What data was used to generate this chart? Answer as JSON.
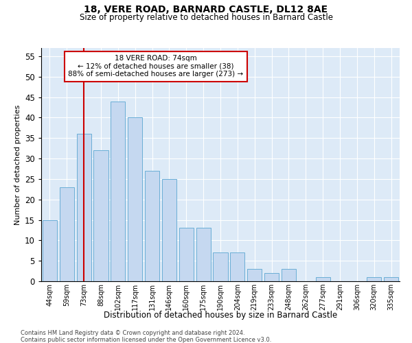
{
  "title1": "18, VERE ROAD, BARNARD CASTLE, DL12 8AE",
  "title2": "Size of property relative to detached houses in Barnard Castle",
  "xlabel": "Distribution of detached houses by size in Barnard Castle",
  "ylabel": "Number of detached properties",
  "footnote1": "Contains HM Land Registry data © Crown copyright and database right 2024.",
  "footnote2": "Contains public sector information licensed under the Open Government Licence v3.0.",
  "annotation_line1": "18 VERE ROAD: 74sqm",
  "annotation_line2": "← 12% of detached houses are smaller (38)",
  "annotation_line3": "88% of semi-detached houses are larger (273) →",
  "bar_labels": [
    "44sqm",
    "59sqm",
    "73sqm",
    "88sqm",
    "102sqm",
    "117sqm",
    "131sqm",
    "146sqm",
    "160sqm",
    "175sqm",
    "190sqm",
    "204sqm",
    "219sqm",
    "233sqm",
    "248sqm",
    "262sqm",
    "277sqm",
    "291sqm",
    "306sqm",
    "320sqm",
    "335sqm"
  ],
  "bar_values": [
    15,
    23,
    36,
    32,
    44,
    40,
    27,
    25,
    13,
    13,
    7,
    7,
    3,
    2,
    3,
    0,
    1,
    0,
    0,
    1,
    1
  ],
  "bar_color": "#c5d8f0",
  "bar_edge_color": "#6aaed6",
  "background_color": "#ddeaf7",
  "vline_color": "#cc0000",
  "annotation_box_edge_color": "#cc0000",
  "ylim": [
    0,
    57
  ],
  "yticks": [
    0,
    5,
    10,
    15,
    20,
    25,
    30,
    35,
    40,
    45,
    50,
    55
  ]
}
